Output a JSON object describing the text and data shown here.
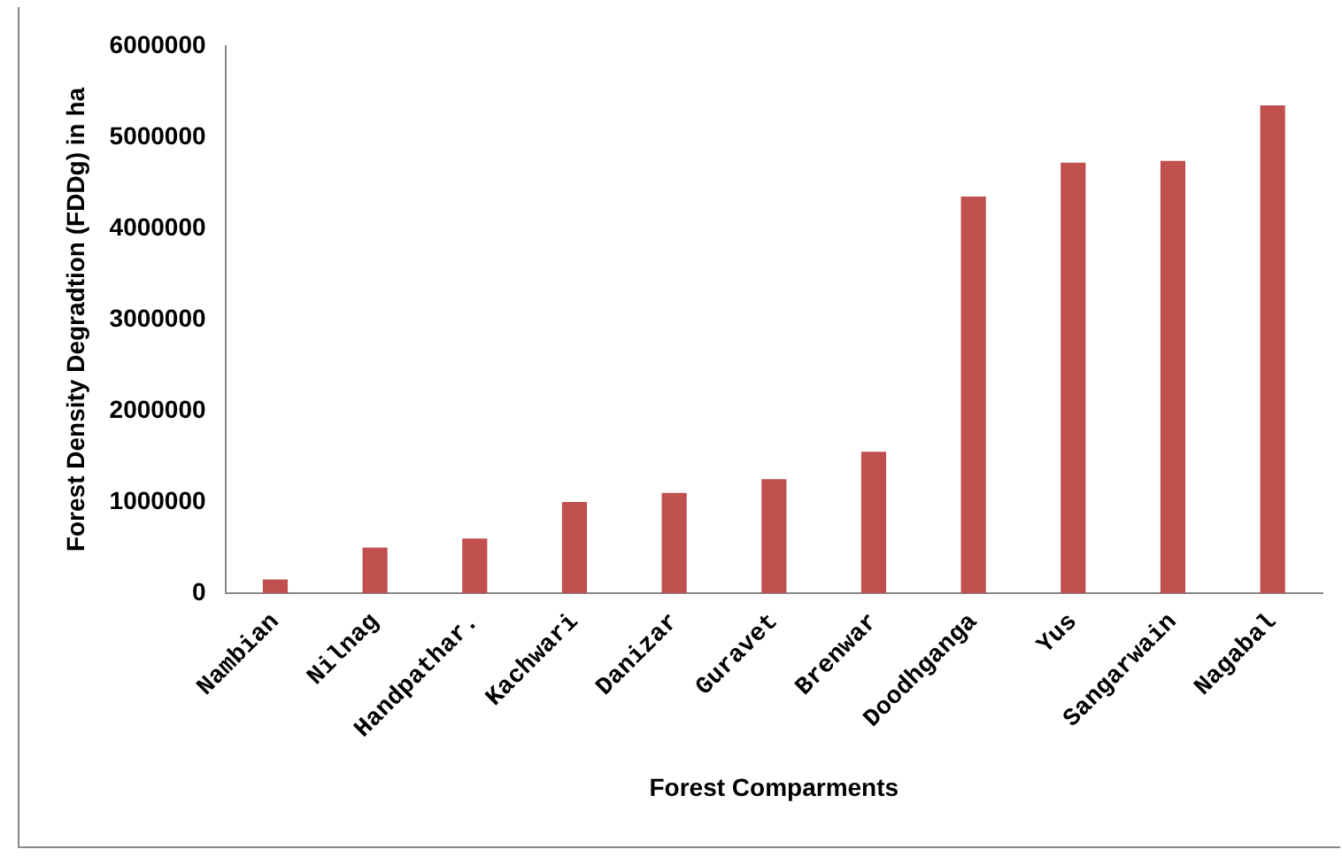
{
  "chart_data": {
    "type": "bar",
    "xlabel": "Forest Comparments",
    "ylabel": "Forest Density Degradtion (FDDg) in ha",
    "categories": [
      "Nambian",
      "Nilnag",
      "Handpathar.",
      "Kachwari",
      "Danizar",
      "Guravet",
      "Brenwar",
      "Doodhganga",
      "Yus",
      "Sangarwain",
      "Nagabal"
    ],
    "values": [
      150000,
      500000,
      600000,
      1000000,
      1100000,
      1250000,
      1550000,
      4350000,
      4720000,
      4740000,
      5350000
    ],
    "color": "#c0504d",
    "ylim": [
      0,
      6000000
    ],
    "yticks": [
      0,
      1000000,
      2000000,
      3000000,
      4000000,
      5000000,
      6000000
    ],
    "grid": false,
    "legend": false
  }
}
